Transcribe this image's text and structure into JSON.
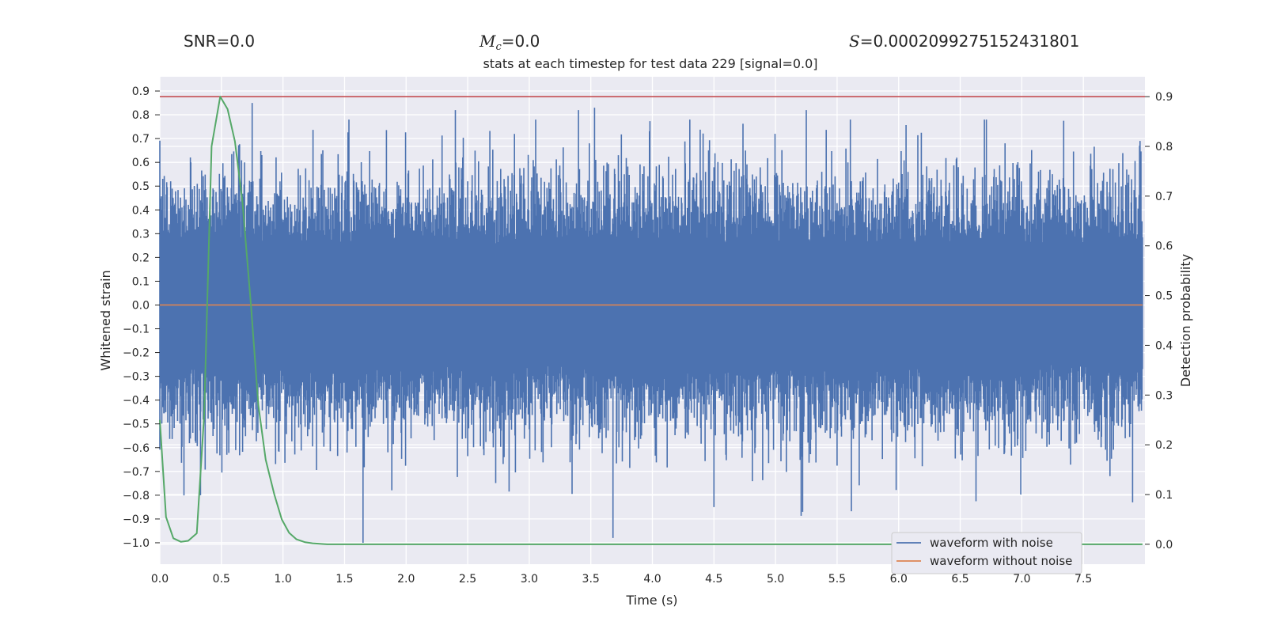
{
  "header": {
    "snr_label": "SNR=0.0",
    "mc_symbol": "M",
    "mc_subscript": "c",
    "mc_value": "=0.0",
    "s_symbol": "S",
    "s_value": "=0.0002099275152431801"
  },
  "chart_data": {
    "type": "line",
    "title": "stats at each timestep for test data 229 [signal=0.0]",
    "xlabel": "Time (s)",
    "ylabel": "Whitened strain",
    "y2label": "Detection probability",
    "xlim": [
      0.0,
      8.0
    ],
    "ylim": [
      -1.09,
      0.96
    ],
    "y2lim": [
      -0.04,
      0.94
    ],
    "xticks": [
      "0.0",
      "0.5",
      "1.0",
      "1.5",
      "2.0",
      "2.5",
      "3.0",
      "3.5",
      "4.0",
      "4.5",
      "5.0",
      "5.5",
      "6.0",
      "6.5",
      "7.0",
      "7.5"
    ],
    "yticks": [
      "−1.0",
      "−0.9",
      "−0.8",
      "−0.7",
      "−0.6",
      "−0.5",
      "−0.4",
      "−0.3",
      "−0.2",
      "−0.1",
      "0.0",
      "0.1",
      "0.2",
      "0.3",
      "0.4",
      "0.5",
      "0.6",
      "0.7",
      "0.8",
      "0.9"
    ],
    "y2ticks": [
      "0.0",
      "0.1",
      "0.2",
      "0.3",
      "0.4",
      "0.5",
      "0.6",
      "0.7",
      "0.8",
      "0.9"
    ],
    "grid": true,
    "threshold": 0.9,
    "series": [
      {
        "name": "waveform with noise",
        "color": "#4c72b0",
        "axis": "left",
        "description_type": "noise",
        "dense_band": [
          -0.25,
          0.25
        ],
        "notable_peaks": [
          [
            0.75,
            0.85
          ],
          [
            2.4,
            0.82
          ],
          [
            3.4,
            0.82
          ],
          [
            3.53,
            0.83
          ],
          [
            5.25,
            0.82
          ],
          [
            1.65,
            -1.0
          ],
          [
            3.68,
            -0.98
          ],
          [
            5.22,
            -0.87
          ],
          [
            4.5,
            -0.85
          ],
          [
            7.9,
            -0.83
          ],
          [
            0.33,
            -0.8
          ]
        ]
      },
      {
        "name": "waveform without noise",
        "color": "#dd8452",
        "axis": "left",
        "x": [
          0.0,
          7.98
        ],
        "values": [
          0.0,
          0.0
        ]
      },
      {
        "name": "detection probability",
        "color": "#55a868",
        "axis": "right",
        "x": [
          0.0,
          0.05,
          0.11,
          0.17,
          0.23,
          0.3,
          0.36,
          0.42,
          0.49,
          0.55,
          0.61,
          0.67,
          0.74,
          0.8,
          0.86,
          0.93,
          0.99,
          1.05,
          1.11,
          1.18,
          1.24,
          1.3,
          1.36,
          1.5,
          2.0,
          3.0,
          4.0,
          5.0,
          6.0,
          7.0,
          7.98
        ],
        "values": [
          0.25,
          0.055,
          0.012,
          0.005,
          0.007,
          0.022,
          0.26,
          0.8,
          0.9,
          0.875,
          0.81,
          0.69,
          0.48,
          0.28,
          0.17,
          0.1,
          0.05,
          0.023,
          0.01,
          0.004,
          0.002,
          0.001,
          0.0,
          0.0,
          0.0,
          0.0,
          0.0,
          0.0,
          0.0,
          0.0,
          0.0
        ]
      }
    ],
    "legend": {
      "placement": "lower-right",
      "entries": [
        {
          "label": "waveform with noise",
          "color": "#4c72b0"
        },
        {
          "label": "waveform without noise",
          "color": "#dd8452"
        }
      ]
    },
    "threshold_color": "#c44e52"
  }
}
